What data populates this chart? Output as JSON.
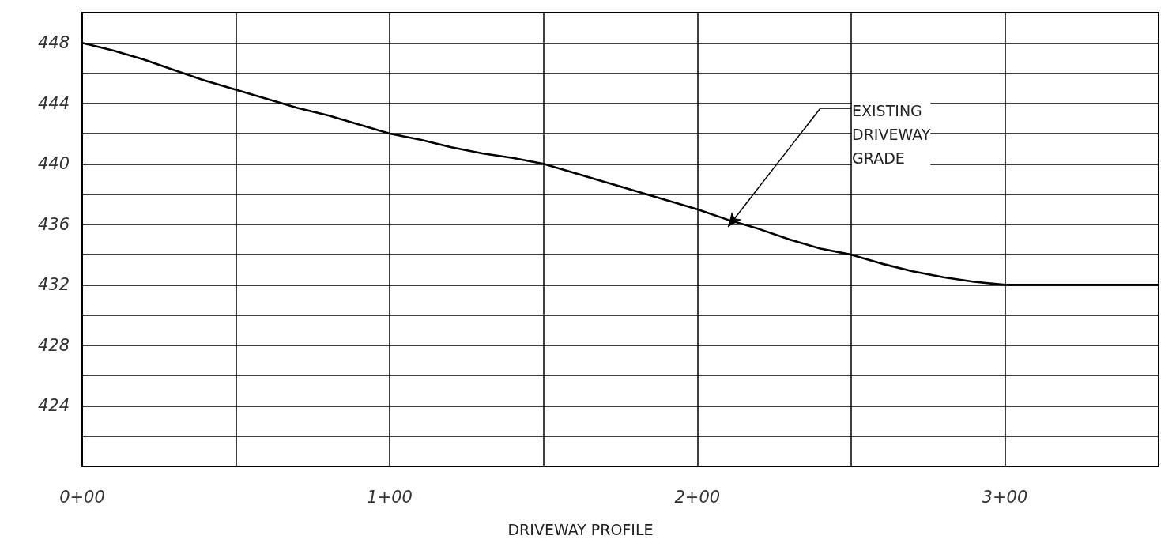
{
  "chart_data": {
    "type": "line",
    "title": "DRIVEWAY PROFILE",
    "categories": [
      "0+00",
      null,
      null,
      null,
      null,
      null,
      null,
      null,
      null,
      null,
      "1+00",
      null,
      null,
      null,
      null,
      null,
      null,
      null,
      null,
      null,
      "2+00",
      null,
      null,
      null,
      null,
      null,
      null,
      null,
      null,
      null,
      "3+00",
      null,
      null,
      null,
      null,
      null
    ],
    "series": [
      {
        "color": "#000000",
        "values": [
          448,
          447.5,
          446.9,
          446.2,
          445.5,
          444.9,
          444.3,
          443.7,
          443.2,
          442.6,
          442,
          441.6,
          441.1,
          440.7,
          440.4,
          440,
          439.4,
          438.8,
          438.2,
          437.6,
          437,
          436.3,
          435.7,
          435,
          434.4,
          434,
          433.4,
          432.9,
          432.5,
          432.2,
          432,
          432,
          432,
          432,
          432,
          432
        ]
      }
    ],
    "ylim": [
      420,
      450
    ],
    "yticks": [
      {
        "value": 420,
        "label": null
      },
      {
        "value": 422,
        "label": null
      },
      424,
      {
        "value": 426,
        "label": null
      },
      428,
      {
        "value": 430,
        "label": null
      },
      432,
      {
        "value": 434,
        "label": null
      },
      436,
      {
        "value": 438,
        "label": null
      },
      440,
      {
        "value": 442,
        "label": null
      },
      444,
      {
        "value": 446,
        "label": null
      },
      448
    ],
    "annotations": [
      "EXISTING\nDRIVEWAY\nGRADE"
    ],
    "grid": true,
    "marker": "none",
    "line_style": "solid"
  }
}
